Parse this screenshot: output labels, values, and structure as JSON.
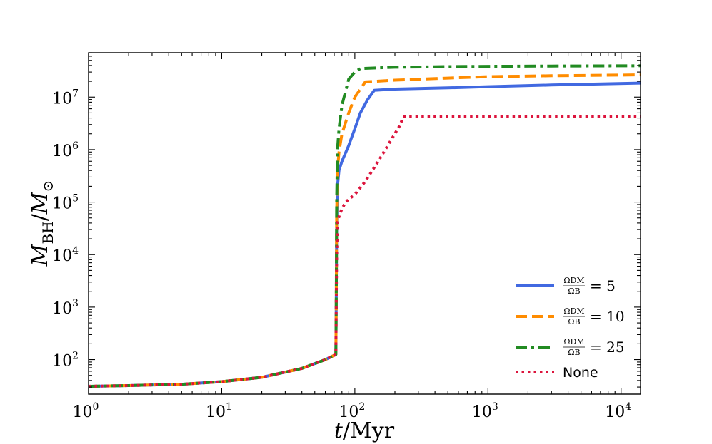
{
  "chart_data": {
    "type": "line",
    "title": "",
    "xlabel": "t/Myr",
    "ylabel": "M_BH/M_⊙",
    "xscale": "log",
    "yscale": "log",
    "xlim": [
      1,
      14000
    ],
    "ylim": [
      22,
      70000000
    ],
    "grid": false,
    "legend_position": "lower-right",
    "x_ticks": [
      {
        "value": 1,
        "base": "10",
        "exp": "0"
      },
      {
        "value": 10,
        "base": "10",
        "exp": "1"
      },
      {
        "value": 100,
        "base": "10",
        "exp": "2"
      },
      {
        "value": 1000,
        "base": "10",
        "exp": "3"
      },
      {
        "value": 10000,
        "base": "10",
        "exp": "4"
      }
    ],
    "y_ticks": [
      {
        "value": 100,
        "base": "10",
        "exp": "2"
      },
      {
        "value": 1000,
        "base": "10",
        "exp": "3"
      },
      {
        "value": 10000,
        "base": "10",
        "exp": "4"
      },
      {
        "value": 100000,
        "base": "10",
        "exp": "5"
      },
      {
        "value": 1000000,
        "base": "10",
        "exp": "6"
      },
      {
        "value": 10000000,
        "base": "10",
        "exp": "7"
      }
    ],
    "series": [
      {
        "name": "ΩDM/ΩB = 5",
        "legend_num": "ΩDM",
        "legend_den": "ΩB",
        "legend_val": "= 5",
        "color": "#4169e1",
        "style": "solid",
        "x": [
          1,
          2,
          5,
          10,
          20,
          40,
          60,
          72,
          72.5,
          73,
          74,
          76,
          80,
          90,
          100,
          110,
          125,
          140,
          200,
          500,
          1000,
          3000,
          14000
        ],
        "y": [
          31,
          32,
          34,
          38,
          46,
          68,
          100,
          125,
          1000,
          30000,
          200000,
          400000,
          600000,
          1200000,
          2500000,
          5000000,
          9000000,
          13500000,
          14200000,
          15000000,
          15800000,
          17000000,
          18500000
        ]
      },
      {
        "name": "ΩDM/ΩB = 10",
        "legend_num": "ΩDM",
        "legend_den": "ΩB",
        "legend_val": "= 10",
        "color": "#ff8c00",
        "style": "dashed",
        "x": [
          1,
          2,
          5,
          10,
          20,
          40,
          60,
          72,
          72.5,
          73,
          74,
          76,
          80,
          90,
          100,
          120,
          200,
          500,
          1000,
          3000,
          14000
        ],
        "y": [
          31,
          32,
          34,
          38,
          46,
          68,
          100,
          125,
          1000,
          60000,
          400000,
          900000,
          2000000,
          5000000,
          10000000,
          19500000,
          21000000,
          23000000,
          24500000,
          25500000,
          26500000
        ]
      },
      {
        "name": "ΩDM/ΩB = 25",
        "legend_num": "ΩDM",
        "legend_den": "ΩB",
        "legend_val": "= 25",
        "color": "#228b22",
        "style": "dashdot",
        "x": [
          1,
          2,
          5,
          10,
          20,
          40,
          60,
          72,
          72.5,
          73,
          74,
          76,
          80,
          90,
          100,
          110,
          200,
          500,
          1000,
          3000,
          14000
        ],
        "y": [
          31,
          32,
          34,
          38,
          46,
          68,
          100,
          125,
          1000,
          100000,
          1000000,
          2500000,
          7000000,
          22000000,
          30000000,
          35000000,
          37000000,
          38000000,
          38500000,
          39000000,
          39500000
        ]
      },
      {
        "name": "None",
        "legend_label": "None",
        "color": "#dc143c",
        "style": "dotted",
        "x": [
          1,
          2,
          5,
          10,
          20,
          40,
          60,
          72,
          72.5,
          73,
          74,
          77,
          85,
          100,
          120,
          150,
          220,
          230,
          500,
          1000,
          14000
        ],
        "y": [
          31,
          32,
          34,
          38,
          46,
          68,
          100,
          125,
          1000,
          8000,
          40000,
          60000,
          100000,
          140000,
          250000,
          600000,
          3000000,
          4200000,
          4200000,
          4200000,
          4200000
        ]
      }
    ]
  }
}
